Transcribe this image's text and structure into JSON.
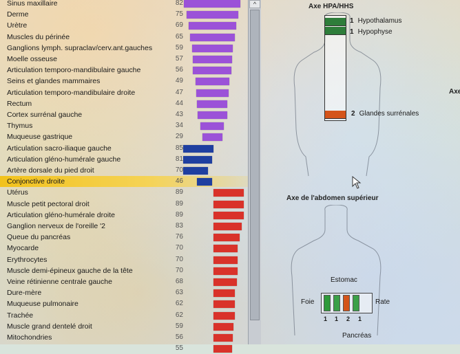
{
  "colors": {
    "purple": "#9b52d8",
    "blue": "#1f3fa0",
    "red": "#d9322a",
    "highlight": "#f2c21c",
    "green": "#2e7d3a",
    "orange": "#d4541a"
  },
  "organ_list": [
    {
      "label": "Sinus maxillaire",
      "value": "82",
      "level": 82,
      "color": "purple"
    },
    {
      "label": "Derme",
      "value": "75",
      "level": 75,
      "color": "purple"
    },
    {
      "label": "Urètre",
      "value": "69",
      "level": 69,
      "color": "purple"
    },
    {
      "label": "Muscles du périnée",
      "value": "65",
      "level": 65,
      "color": "purple"
    },
    {
      "label": "Ganglions lymph. supraclav/cerv.ant.gauches",
      "value": "59",
      "level": 59,
      "color": "purple"
    },
    {
      "label": "Moelle osseuse",
      "value": "57",
      "level": 57,
      "color": "purple"
    },
    {
      "label": "Articulation temporo-mandibulaire gauche",
      "value": "56",
      "level": 56,
      "color": "purple"
    },
    {
      "label": "Seins et glandes mammaires",
      "value": "49",
      "level": 49,
      "color": "purple"
    },
    {
      "label": "Articulation temporo-mandibulaire droite",
      "value": "47",
      "level": 47,
      "color": "purple"
    },
    {
      "label": "Rectum",
      "value": "44",
      "level": 44,
      "color": "purple"
    },
    {
      "label": "Cortex surrénal gauche",
      "value": "43",
      "level": 43,
      "color": "purple"
    },
    {
      "label": "Thymus",
      "value": "34",
      "level": 34,
      "color": "purple"
    },
    {
      "label": "Muqueuse gastrique",
      "value": "29",
      "level": 29,
      "color": "purple"
    },
    {
      "label": "Articulation sacro-iliaque gauche",
      "value": "85",
      "level": 85,
      "color": "blue"
    },
    {
      "label": "Articulation gléno-humérale gauche",
      "value": "81",
      "level": 81,
      "color": "blue"
    },
    {
      "label": "Artère dorsale du pied droit",
      "value": "70",
      "level": 70,
      "color": "blue"
    },
    {
      "label": "Conjonctive droite",
      "value": "46",
      "level": 46,
      "color": "blue",
      "highlight": true
    },
    {
      "label": "Utérus",
      "value": "89",
      "level": 89,
      "color": "red"
    },
    {
      "label": "Muscle petit pectoral droit",
      "value": "89",
      "level": 89,
      "color": "red"
    },
    {
      "label": "Articulation gléno-humérale droite",
      "value": "89",
      "level": 89,
      "color": "red"
    },
    {
      "label": "Ganglion nerveux de l'oreille '2",
      "value": "83",
      "level": 83,
      "color": "red"
    },
    {
      "label": "Queue du pancréas",
      "value": "76",
      "level": 76,
      "color": "red"
    },
    {
      "label": "Myocarde",
      "value": "70",
      "level": 70,
      "color": "red"
    },
    {
      "label": "Erythrocytes",
      "value": "70",
      "level": 70,
      "color": "red"
    },
    {
      "label": "Muscle demi-épineux gauche de la tête",
      "value": "70",
      "level": 70,
      "color": "red"
    },
    {
      "label": "Veine rétinienne centrale gauche",
      "value": "68",
      "level": 68,
      "color": "red"
    },
    {
      "label": "Dure-mère",
      "value": "63",
      "level": 63,
      "color": "red"
    },
    {
      "label": "Muqueuse pulmonaire",
      "value": "62",
      "level": 62,
      "color": "red"
    },
    {
      "label": "Trachée",
      "value": "62",
      "level": 62,
      "color": "red"
    },
    {
      "label": "Muscle grand dentelé droit",
      "value": "59",
      "level": 59,
      "color": "red"
    },
    {
      "label": "Mitochondries",
      "value": "56",
      "level": 56,
      "color": "red"
    },
    {
      "label": "",
      "value": "55",
      "level": 55,
      "color": "red"
    }
  ],
  "scrollbar": {
    "up_arrow": "^"
  },
  "hpa_panel": {
    "title": "Axe HPA/HHS",
    "items": [
      {
        "number": "1",
        "label": "Hypothalamus",
        "color": "green"
      },
      {
        "number": "1",
        "label": "Hypophyse",
        "color": "green"
      },
      {
        "number": "2",
        "label": "Glandes surrénales",
        "color": "orange"
      }
    ],
    "side_label_cut": "Axe"
  },
  "abdomen_panel": {
    "title": "Axe de l'abdomen supérieur",
    "label_top": "Estomac",
    "label_left": "Foie",
    "label_right": "Rate",
    "label_bottom": "Pancréas",
    "numbers": [
      "1",
      "1",
      "2",
      "1"
    ]
  }
}
